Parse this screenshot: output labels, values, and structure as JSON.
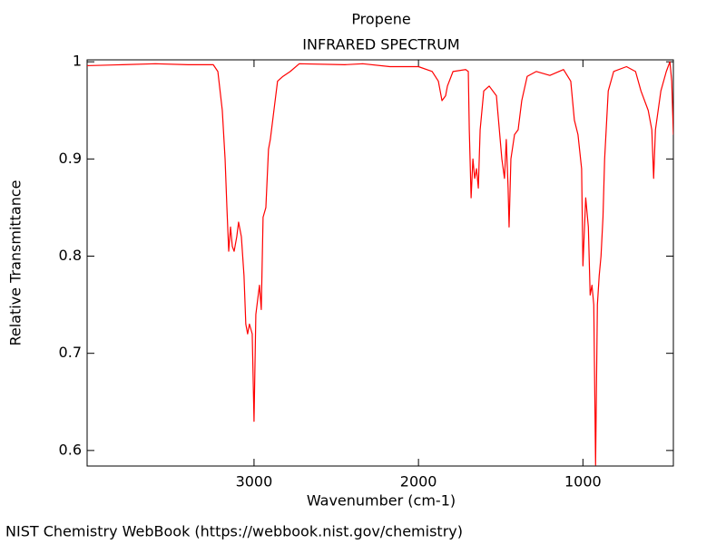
{
  "chart_data": {
    "type": "line",
    "title": "Propene",
    "subtitle": "INFRARED SPECTRUM",
    "x_label": "Wavenumber (cm-1)",
    "y_label": "Relative Transmittance",
    "footer": "NIST Chemistry WebBook (https://webbook.nist.gov/chemistry)",
    "xlim": [
      4015,
      450
    ],
    "ylim": [
      0.584,
      1.002
    ],
    "xticks": [
      3000,
      2000,
      1000
    ],
    "yticks": [
      0.6,
      0.7,
      0.8,
      0.9,
      1
    ],
    "series": [
      {
        "name": "Propene",
        "color": "#ff0000",
        "x": [
          4015,
          3800,
          3600,
          3400,
          3248,
          3220,
          3193,
          3176,
          3165,
          3154,
          3143,
          3132,
          3121,
          3105,
          3094,
          3077,
          3061,
          3050,
          3039,
          3028,
          3011,
          3000,
          2989,
          2978,
          2967,
          2956,
          2945,
          2928,
          2912,
          2901,
          2879,
          2857,
          2824,
          2780,
          2725,
          2449,
          2339,
          2174,
          2000,
          1917,
          1879,
          1857,
          1835,
          1824,
          1790,
          1713,
          1697,
          1691,
          1680,
          1669,
          1658,
          1647,
          1636,
          1625,
          1603,
          1570,
          1526,
          1493,
          1477,
          1466,
          1455,
          1449,
          1438,
          1416,
          1394,
          1372,
          1339,
          1284,
          1201,
          1118,
          1074,
          1052,
          1030,
          1008,
          1000,
          983,
          967,
          956,
          945,
          934,
          923,
          912,
          901,
          890,
          878,
          868,
          846,
          813,
          735,
          680,
          647,
          603,
          581,
          570,
          559,
          526,
          493,
          471,
          460,
          450
        ],
        "values": [
          0.996,
          0.997,
          0.998,
          0.997,
          0.997,
          0.99,
          0.95,
          0.9,
          0.85,
          0.805,
          0.83,
          0.81,
          0.805,
          0.82,
          0.835,
          0.82,
          0.78,
          0.73,
          0.72,
          0.73,
          0.72,
          0.63,
          0.74,
          0.755,
          0.77,
          0.745,
          0.84,
          0.85,
          0.91,
          0.92,
          0.95,
          0.98,
          0.985,
          0.99,
          0.998,
          0.997,
          0.998,
          0.995,
          0.995,
          0.99,
          0.98,
          0.96,
          0.965,
          0.975,
          0.99,
          0.992,
          0.99,
          0.93,
          0.86,
          0.9,
          0.88,
          0.89,
          0.87,
          0.93,
          0.97,
          0.975,
          0.965,
          0.9,
          0.88,
          0.92,
          0.87,
          0.83,
          0.9,
          0.925,
          0.93,
          0.96,
          0.985,
          0.99,
          0.986,
          0.992,
          0.98,
          0.94,
          0.925,
          0.89,
          0.79,
          0.86,
          0.83,
          0.76,
          0.77,
          0.75,
          0.585,
          0.75,
          0.78,
          0.8,
          0.84,
          0.9,
          0.97,
          0.99,
          0.995,
          0.99,
          0.97,
          0.95,
          0.93,
          0.88,
          0.93,
          0.97,
          0.99,
          1.0,
          0.98,
          0.925
        ]
      }
    ]
  }
}
